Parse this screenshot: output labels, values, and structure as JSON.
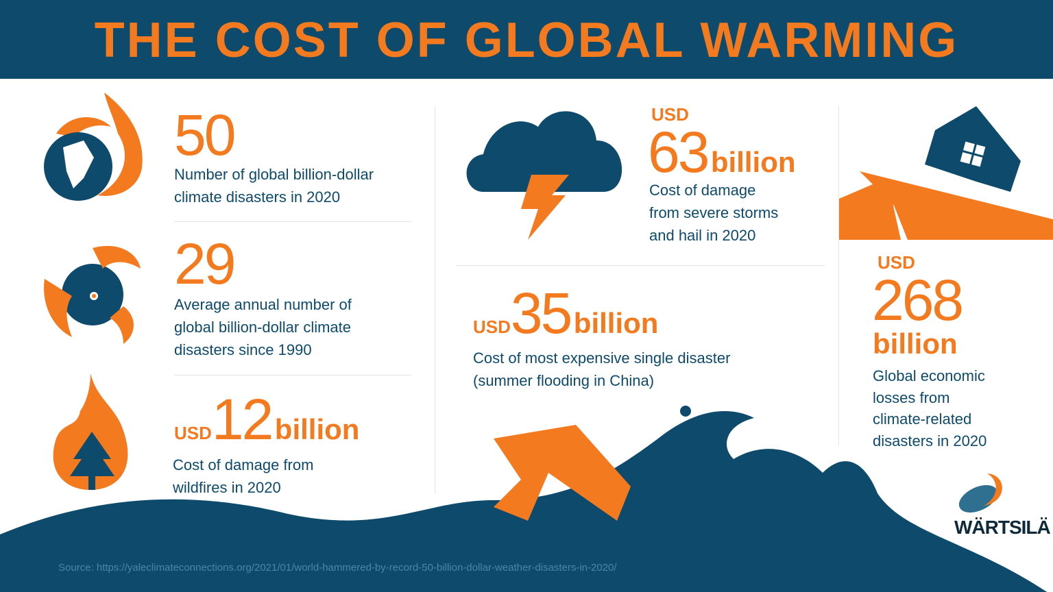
{
  "title": "THE COST OF GLOBAL WARMING",
  "colors": {
    "navy": "#0d4a6b",
    "orange": "#f47a20"
  },
  "stats": [
    {
      "value": "50",
      "description_lines": [
        "Number of global billion-dollar",
        "climate disasters in 2020"
      ],
      "icon": "burning-globe-icon"
    },
    {
      "value": "29",
      "description_lines": [
        "Average annual number of",
        "global billion-dollar climate",
        "disasters since 1990"
      ],
      "icon": "hurricane-icon"
    },
    {
      "prefix": "USD",
      "value": "12",
      "unit": "billion",
      "description_lines": [
        "Cost of damage from",
        "wildfires in 2020"
      ],
      "icon": "wildfire-tree-icon"
    },
    {
      "prefix": "USD",
      "value": "63",
      "unit": "billion",
      "description_lines": [
        "Cost of damage",
        "from severe storms",
        "and hail in 2020"
      ],
      "icon": "storm-cloud-icon"
    },
    {
      "prefix": "USD",
      "value": "35",
      "unit": "billion",
      "description_lines": [
        "Cost of most expensive single disaster",
        "(summer flooding in China)"
      ],
      "icon": "flood-wave-icon"
    },
    {
      "prefix": "USD",
      "value": "268",
      "unit": "billion",
      "description_lines": [
        "Global economic",
        "losses from",
        "climate-related",
        "disasters in 2020"
      ],
      "icon": "earthquake-house-icon"
    }
  ],
  "logo": "WÄRTSILÄ",
  "source": "Source: https://yaleclimateconnections.org/2021/01/world-hammered-by-record-50-billion-dollar-weather-disasters-in-2020/"
}
